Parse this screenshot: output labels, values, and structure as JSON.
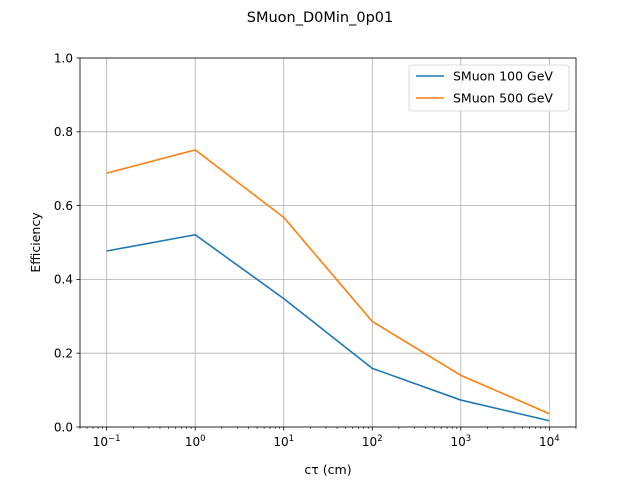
{
  "chart_data": {
    "type": "line",
    "title": "SMuon_D0Min_0p01",
    "xlabel": "cτ (cm)",
    "ylabel": "Efficiency",
    "xscale": "log",
    "xlim": [
      0.05,
      20000
    ],
    "ylim": [
      0,
      1.0
    ],
    "grid": true,
    "legend_position": "top-right",
    "x": [
      0.1,
      1,
      10,
      100,
      1000,
      10000
    ],
    "xticks": [
      {
        "base": "10",
        "exp": "−1",
        "value": 0.1
      },
      {
        "base": "10",
        "exp": "0",
        "value": 1
      },
      {
        "base": "10",
        "exp": "1",
        "value": 10
      },
      {
        "base": "10",
        "exp": "2",
        "value": 100
      },
      {
        "base": "10",
        "exp": "3",
        "value": 1000
      },
      {
        "base": "10",
        "exp": "4",
        "value": 10000
      }
    ],
    "yticks": [
      "0.0",
      "0.2",
      "0.4",
      "0.6",
      "0.8",
      "1.0"
    ],
    "series": [
      {
        "name": "SMuon 100 GeV",
        "color": "#1f77b4",
        "values": [
          0.477,
          0.521,
          0.348,
          0.159,
          0.073,
          0.017
        ]
      },
      {
        "name": "SMuon 500 GeV",
        "color": "#ff7f0e",
        "values": [
          0.688,
          0.751,
          0.568,
          0.286,
          0.14,
          0.036
        ]
      }
    ]
  }
}
